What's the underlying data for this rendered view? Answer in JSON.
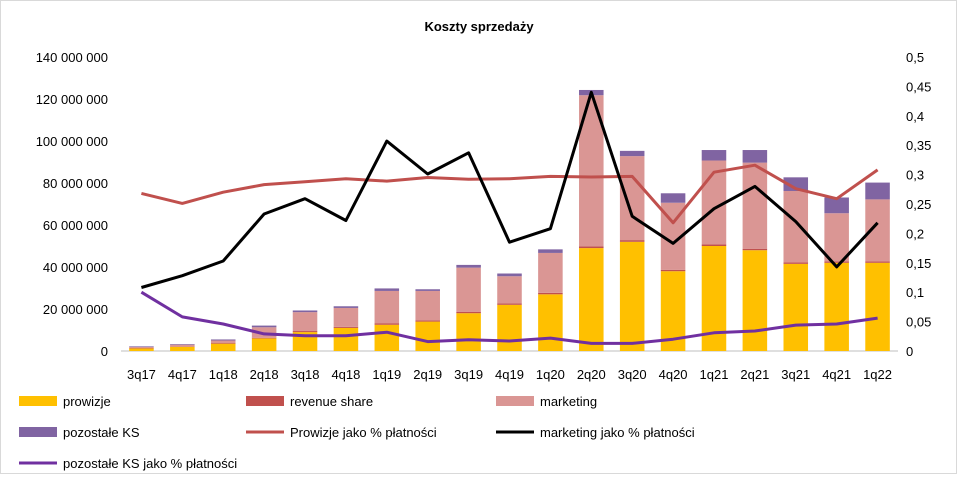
{
  "chart_data": {
    "type": "bar",
    "title": "Koszty sprzedaży",
    "categories": [
      "3q17",
      "4q17",
      "1q18",
      "2q18",
      "3q18",
      "4q18",
      "1q19",
      "2q19",
      "3q19",
      "4q19",
      "1q20",
      "2q20",
      "3q20",
      "4q20",
      "1q21",
      "2q21",
      "3q21",
      "4q21",
      "1q22"
    ],
    "y_left": {
      "min": 0,
      "max": 140000000,
      "step": 20000000,
      "tick_labels": [
        "0",
        "20 000 000",
        "40 000 000",
        "60 000 000",
        "80 000 000",
        "100 000 000",
        "120 000 000",
        "140 000 000"
      ]
    },
    "y_right": {
      "min": 0,
      "max": 0.5,
      "step": 0.05,
      "tick_labels": [
        "0",
        "0,05",
        "0,1",
        "0,15",
        "0,2",
        "0,25",
        "0,3",
        "0,35",
        "0,4",
        "0,45",
        "0,5"
      ]
    },
    "grid": false,
    "legend_position": "bottom",
    "stacked_series": [
      {
        "name": "prowizje",
        "color": "#ffc000",
        "values": [
          1200000,
          2000000,
          3500000,
          6000000,
          9000000,
          11000000,
          12500000,
          14000000,
          18000000,
          22000000,
          27000000,
          49000000,
          52000000,
          38000000,
          50000000,
          48000000,
          41500000,
          42000000,
          42000000
        ]
      },
      {
        "name": "revenue share",
        "color": "#c0504d",
        "values": [
          200000,
          200000,
          300000,
          300000,
          500000,
          500000,
          600000,
          600000,
          700000,
          600000,
          700000,
          800000,
          800000,
          600000,
          700000,
          700000,
          700000,
          600000,
          700000
        ]
      },
      {
        "name": "marketing",
        "color": "#da9694",
        "values": [
          500000,
          800000,
          1200000,
          5000000,
          9000000,
          9000000,
          15500000,
          14000000,
          21000000,
          13000000,
          19000000,
          72000000,
          40000000,
          32000000,
          40000000,
          41000000,
          34000000,
          23000000,
          29500000
        ]
      },
      {
        "name": "pozostałe KS",
        "color": "#8064a2",
        "values": [
          300000,
          300000,
          500000,
          800000,
          800000,
          800000,
          1200000,
          800000,
          1300000,
          1300000,
          1700000,
          2500000,
          2500000,
          4500000,
          5000000,
          6000000,
          6500000,
          7500000,
          8000000
        ]
      }
    ],
    "line_series": [
      {
        "name": "Prowizje jako % płatności",
        "color": "#c0504d",
        "values": [
          0.268,
          0.251,
          0.27,
          0.283,
          0.288,
          0.293,
          0.289,
          0.295,
          0.292,
          0.293,
          0.297,
          0.296,
          0.297,
          0.218,
          0.304,
          0.316,
          0.276,
          0.259,
          0.308
        ]
      },
      {
        "name": "marketing jako % płatności",
        "color": "#000000",
        "values": [
          0.108,
          0.128,
          0.153,
          0.233,
          0.259,
          0.222,
          0.357,
          0.301,
          0.337,
          0.185,
          0.208,
          0.44,
          0.229,
          0.183,
          0.242,
          0.28,
          0.22,
          0.143,
          0.218
        ]
      },
      {
        "name": "pozostałe KS jako % płatności",
        "color": "#7030a0",
        "values": [
          0.1,
          0.058,
          0.046,
          0.029,
          0.026,
          0.026,
          0.032,
          0.016,
          0.019,
          0.017,
          0.022,
          0.013,
          0.013,
          0.02,
          0.031,
          0.034,
          0.044,
          0.046,
          0.056
        ]
      }
    ]
  }
}
